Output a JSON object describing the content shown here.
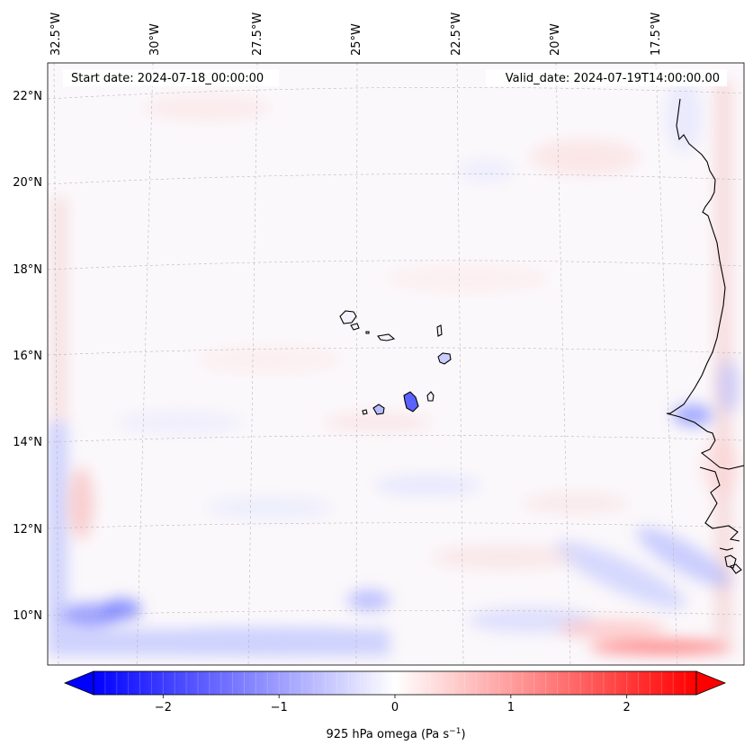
{
  "map": {
    "start_date": "Start date: 2024-07-18_00:00:00",
    "valid_date": "Valid_date: 2024-07-19T14:00:00.00",
    "lon_labels": [
      "32.5°W",
      "30°W",
      "27.5°W",
      "25°W",
      "22.5°W",
      "20°W",
      "17.5°W"
    ],
    "lat_labels": [
      "22°N",
      "20°N",
      "18°N",
      "16°N",
      "14°N",
      "12°N",
      "10°N"
    ]
  },
  "colorbar": {
    "label_prefix": "925 hPa omega (Pa s",
    "label_exp": "−1",
    "label_suffix": ")",
    "ticks": [
      "−2",
      "−1",
      "0",
      "1",
      "2"
    ],
    "tick_values": [
      -2,
      -1,
      0,
      1,
      2
    ],
    "range": [
      -2.6,
      2.6
    ],
    "colormap": "bwr",
    "colors": {
      "min": "#0000ff",
      "mid": "#ffffff",
      "max": "#ff0000"
    }
  }
}
